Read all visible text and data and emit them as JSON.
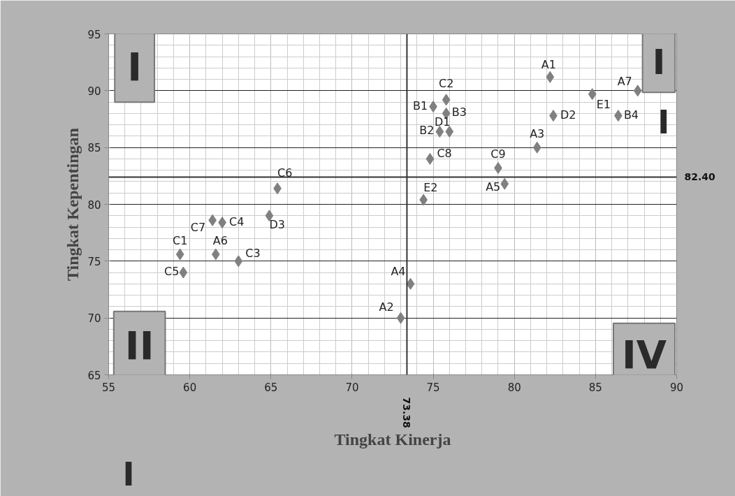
{
  "chart_data": {
    "type": "scatter",
    "xlabel": "Tingkat Kinerja",
    "ylabel": "Tingkat Kepentingan",
    "xlim": [
      55,
      90
    ],
    "xticks": [
      55,
      60,
      65,
      70,
      75,
      80,
      85,
      90
    ],
    "ylim": [
      65,
      95
    ],
    "yticks": [
      65,
      70,
      75,
      80,
      85,
      90,
      95
    ],
    "grid": true,
    "marker": "diamond",
    "x": [
      82.2,
      73.0,
      81.4,
      73.6,
      79.4,
      61.6,
      87.6,
      75.0,
      75.4,
      75.8,
      86.4,
      59.4,
      75.8,
      63.0,
      62.0,
      59.6,
      65.4,
      61.4,
      74.8,
      79.0,
      76.0,
      82.4,
      64.9,
      84.8,
      74.4
    ],
    "series": [
      {
        "color": "#808080",
        "values": [
          91.2,
          70.0,
          85.0,
          73.0,
          81.8,
          75.6,
          90.0,
          88.6,
          86.4,
          88.0,
          87.8,
          75.6,
          89.2,
          75.0,
          78.4,
          74.0,
          81.4,
          78.6,
          84.0,
          83.2,
          86.4,
          87.8,
          79.0,
          89.7,
          80.4
        ],
        "value_labels": [
          "A1",
          "A2",
          "A3",
          "A4",
          "A5",
          "A6",
          "A7",
          "B1",
          "B2",
          "B3",
          "B4",
          "C1",
          "C2",
          "C3",
          "C4",
          "C5",
          "C6",
          "C7",
          "C8",
          "C9",
          "D1",
          "D2",
          "D3",
          "E1",
          "E2"
        ]
      }
    ],
    "ref_lines": [
      {
        "axis": "x",
        "value": 73.38,
        "label": "73.38",
        "color": "#333333"
      },
      {
        "axis": "y",
        "value": 82.4,
        "label": "82.40",
        "color": "#333333"
      }
    ],
    "annotations": [
      "I",
      "I",
      "I",
      "II",
      "I",
      "IV"
    ]
  }
}
